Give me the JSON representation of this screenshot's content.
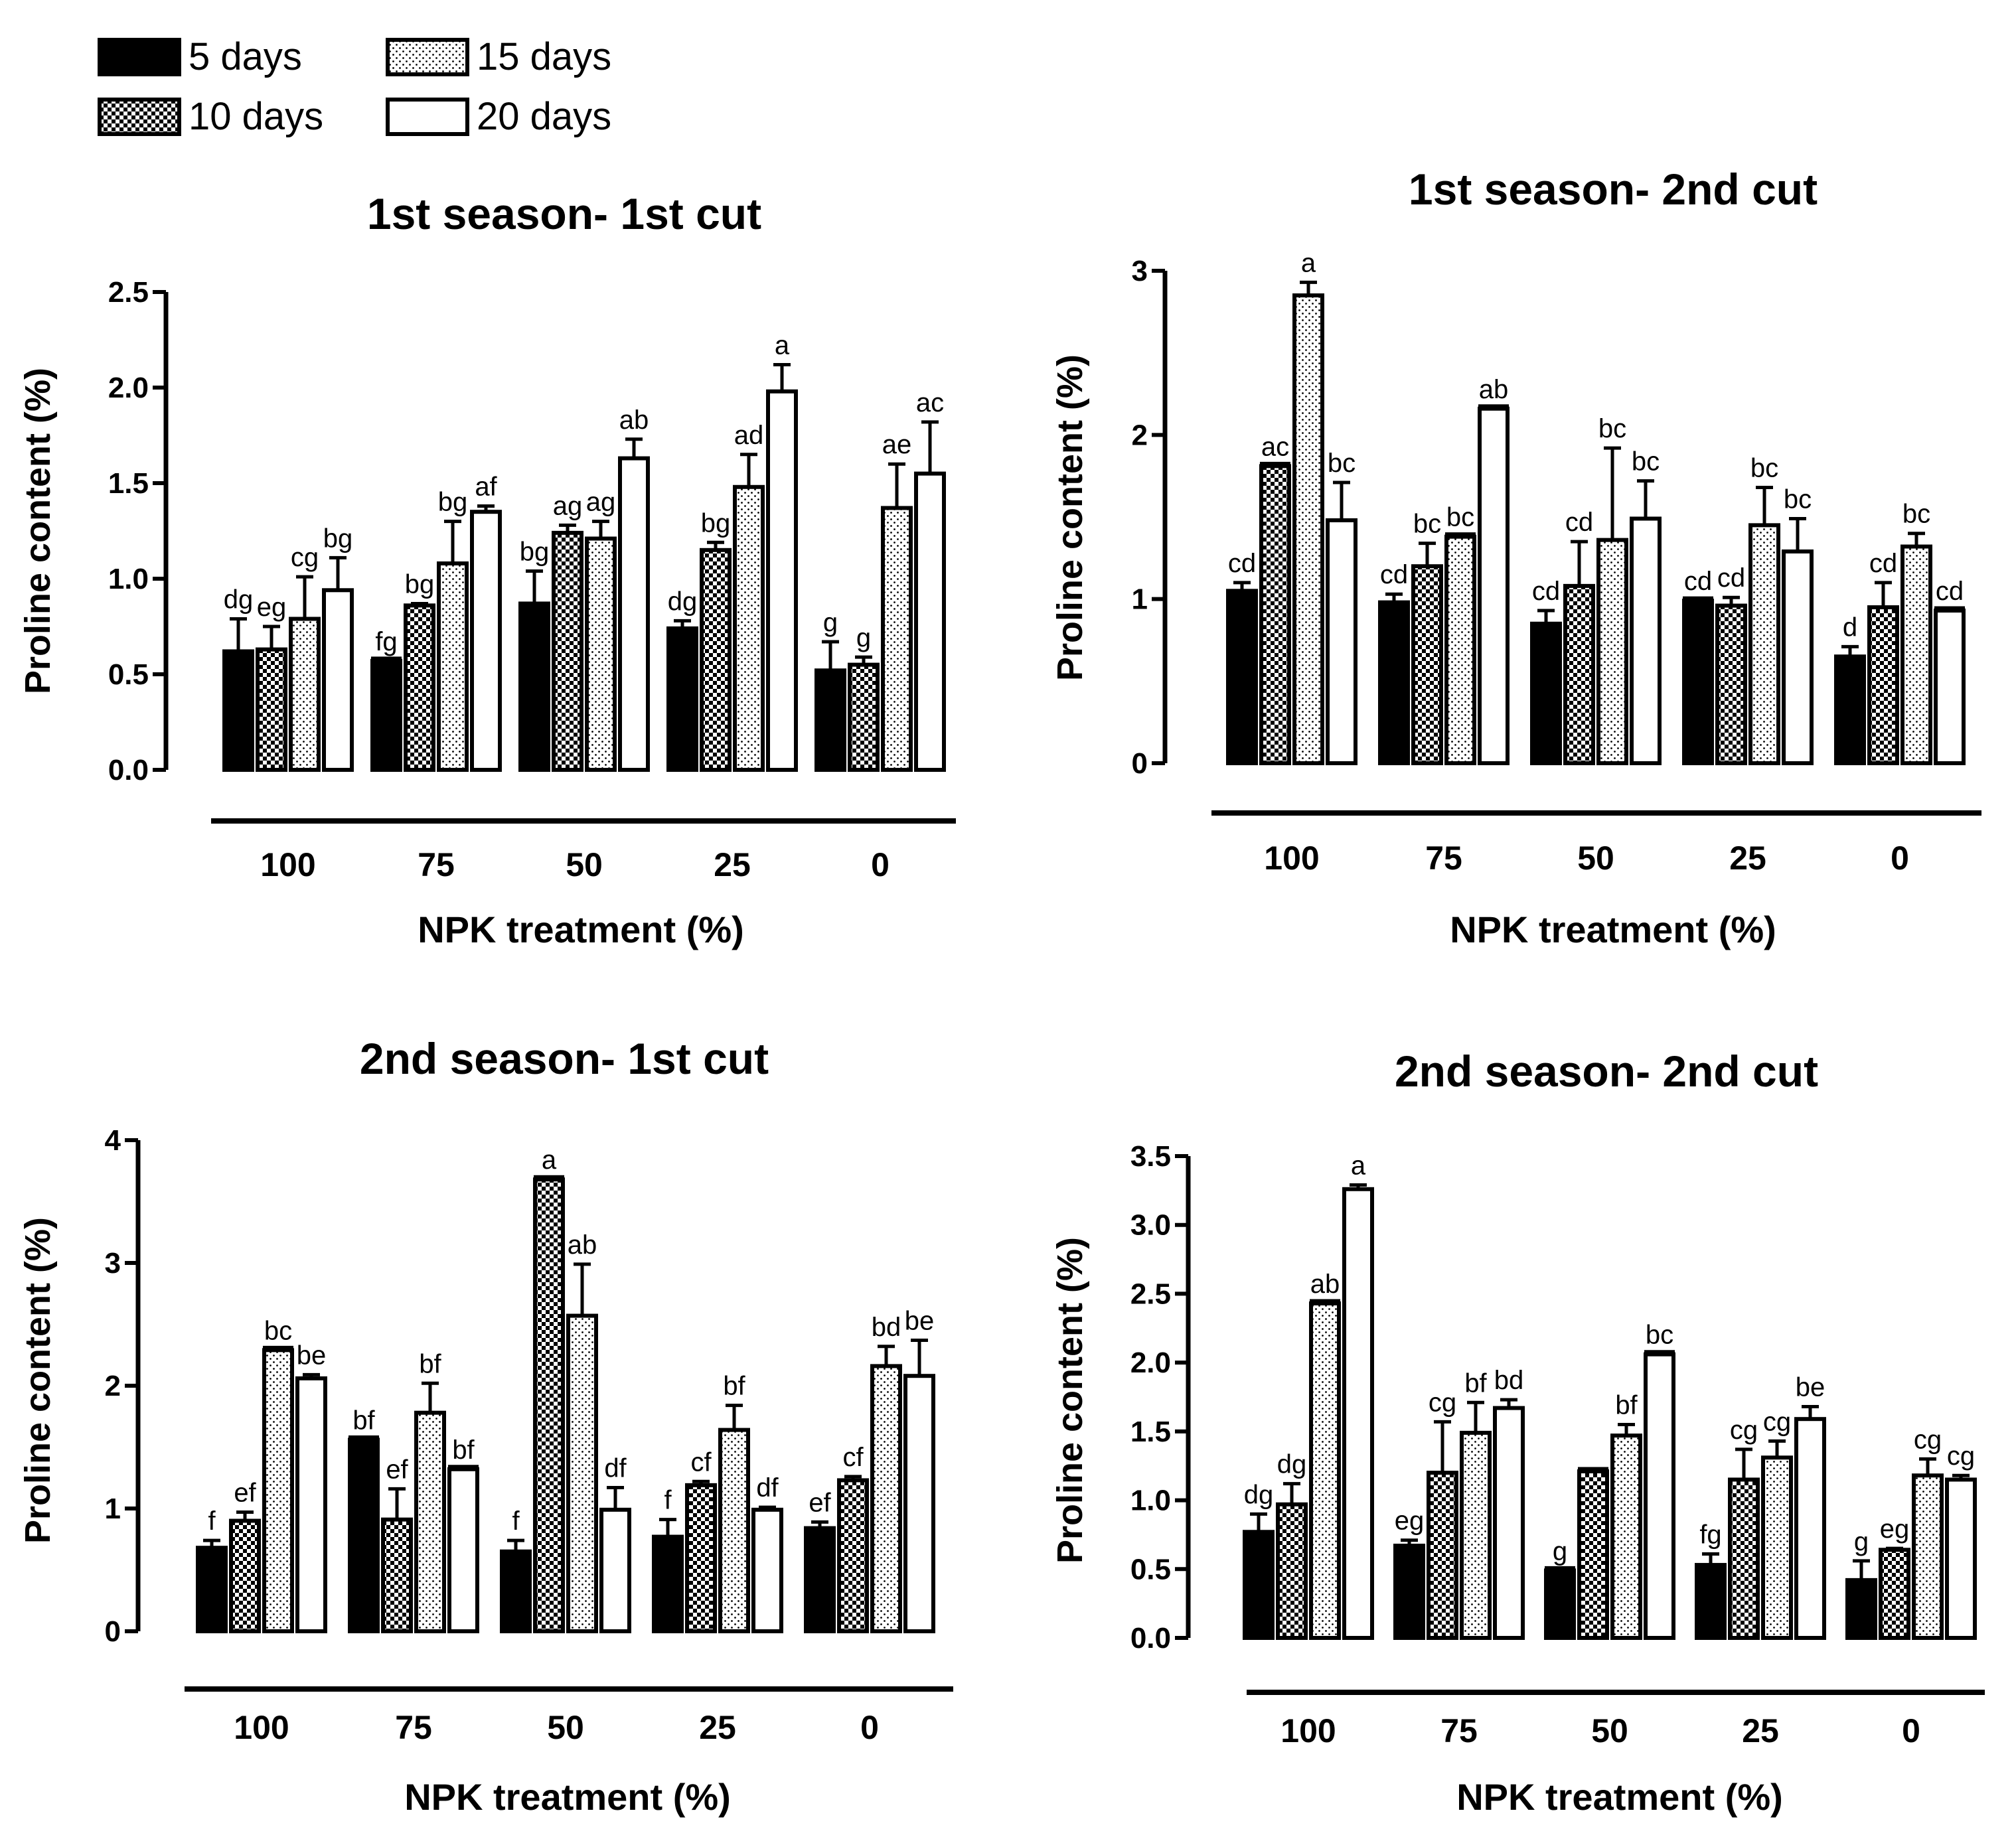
{
  "legend": [
    {
      "label": "5 days",
      "pattern": "solid"
    },
    {
      "label": "10 days",
      "pattern": "checker"
    },
    {
      "label": "15 days",
      "pattern": "dots"
    },
    {
      "label": "20 days",
      "pattern": "empty"
    }
  ],
  "colors": {
    "ink": "#000000",
    "background": "#ffffff"
  },
  "chart_data": [
    {
      "type": "bar",
      "title": "1st season- 1st cut",
      "xlabel": "NPK treatment (%)",
      "ylabel": "Proline content (%)",
      "categories": [
        "100",
        "75",
        "50",
        "25",
        "0"
      ],
      "ylim": [
        0,
        2.5
      ],
      "yticks": [
        "0.0",
        "0.5",
        "1.0",
        "1.5",
        "2.0",
        "2.5"
      ],
      "series": [
        {
          "name": "5 days",
          "values": [
            0.62,
            0.57,
            0.87,
            0.74,
            0.52
          ],
          "errors": [
            0.17,
            0.0,
            0.17,
            0.04,
            0.15
          ],
          "labels": [
            "dg",
            "fg",
            "bg",
            "dg",
            "g"
          ]
        },
        {
          "name": "10 days",
          "values": [
            0.63,
            0.86,
            1.24,
            1.15,
            0.55
          ],
          "errors": [
            0.12,
            0.01,
            0.04,
            0.04,
            0.04
          ],
          "labels": [
            "eg",
            "bg",
            "ag",
            "bg",
            "g"
          ]
        },
        {
          "name": "15 days",
          "values": [
            0.79,
            1.08,
            1.21,
            1.48,
            1.37
          ],
          "errors": [
            0.22,
            0.22,
            0.09,
            0.17,
            0.23
          ],
          "labels": [
            "cg",
            "bg",
            "ag",
            "ad",
            "ae"
          ]
        },
        {
          "name": "20 days",
          "values": [
            0.94,
            1.35,
            1.63,
            1.98,
            1.55
          ],
          "errors": [
            0.17,
            0.03,
            0.1,
            0.14,
            0.27
          ],
          "labels": [
            "bg",
            "af",
            "ab",
            "a",
            "ac"
          ]
        }
      ]
    },
    {
      "type": "bar",
      "title": "1st season- 2nd cut",
      "xlabel": "NPK treatment (%)",
      "ylabel": "Proline content (%)",
      "categories": [
        "100",
        "75",
        "50",
        "25",
        "0"
      ],
      "ylim": [
        0,
        3
      ],
      "yticks": [
        "0",
        "1",
        "2",
        "3"
      ],
      "series": [
        {
          "name": "5 days",
          "values": [
            1.05,
            0.98,
            0.85,
            0.99,
            0.65
          ],
          "errors": [
            0.05,
            0.05,
            0.08,
            0.0,
            0.06
          ],
          "labels": [
            "cd",
            "cd",
            "cd",
            "cd",
            "d"
          ]
        },
        {
          "name": "10 days",
          "values": [
            1.81,
            1.2,
            1.08,
            0.96,
            0.95
          ],
          "errors": [
            0.0,
            0.14,
            0.27,
            0.05,
            0.15
          ],
          "labels": [
            "ac",
            "bc",
            "cd",
            "cd",
            "cd"
          ]
        },
        {
          "name": "15 days",
          "values": [
            2.85,
            1.38,
            1.36,
            1.45,
            1.32
          ],
          "errors": [
            0.08,
            0.0,
            0.56,
            0.23,
            0.08
          ],
          "labels": [
            "a",
            "bc",
            "bc",
            "bc",
            "bc"
          ]
        },
        {
          "name": "20 days",
          "values": [
            1.48,
            2.16,
            1.49,
            1.29,
            0.93
          ],
          "errors": [
            0.23,
            0.0,
            0.23,
            0.2,
            0.0
          ],
          "labels": [
            "bc",
            "ab",
            "bc",
            "bc",
            "cd"
          ]
        }
      ]
    },
    {
      "type": "bar",
      "title": "2nd season- 1st cut",
      "xlabel": "NPK treatment (%)",
      "ylabel": "Proline content (%)",
      "categories": [
        "100",
        "75",
        "50",
        "25",
        "0"
      ],
      "ylim": [
        0,
        4
      ],
      "yticks": [
        "0",
        "1",
        "2",
        "3",
        "4"
      ],
      "series": [
        {
          "name": "5 days",
          "values": [
            0.68,
            1.56,
            0.65,
            0.77,
            0.84
          ],
          "errors": [
            0.06,
            0.0,
            0.09,
            0.14,
            0.05
          ],
          "labels": [
            "f",
            "bf",
            "f",
            "f",
            "ef"
          ]
        },
        {
          "name": "10 days",
          "values": [
            0.9,
            0.91,
            3.68,
            1.19,
            1.23
          ],
          "errors": [
            0.07,
            0.25,
            0.0,
            0.03,
            0.03
          ],
          "labels": [
            "ef",
            "ef",
            "a",
            "cf",
            "cf"
          ]
        },
        {
          "name": "15 days",
          "values": [
            2.29,
            1.78,
            2.57,
            1.64,
            2.16
          ],
          "errors": [
            0.0,
            0.24,
            0.42,
            0.2,
            0.16
          ],
          "labels": [
            "bc",
            "bf",
            "ab",
            "bf",
            "bd"
          ]
        },
        {
          "name": "20 days",
          "values": [
            2.06,
            1.32,
            0.99,
            0.99,
            2.08
          ],
          "errors": [
            0.03,
            0.0,
            0.18,
            0.02,
            0.29
          ],
          "labels": [
            "be",
            "bf",
            "df",
            "df",
            "be"
          ]
        }
      ]
    },
    {
      "type": "bar",
      "title": "2nd season- 2nd cut",
      "xlabel": "NPK treatment (%)",
      "ylabel": "Proline content (%)",
      "categories": [
        "100",
        "75",
        "50",
        "25",
        "0"
      ],
      "ylim": [
        0,
        3.5
      ],
      "yticks": [
        "0.0",
        "0.5",
        "1.0",
        "1.5",
        "2.0",
        "2.5",
        "3.0",
        "3.5"
      ],
      "series": [
        {
          "name": "5 days",
          "values": [
            0.77,
            0.67,
            0.49,
            0.53,
            0.42
          ],
          "errors": [
            0.13,
            0.04,
            0.0,
            0.08,
            0.14
          ],
          "labels": [
            "dg",
            "eg",
            "g",
            "fg",
            "g"
          ]
        },
        {
          "name": "10 days",
          "values": [
            0.97,
            1.2,
            1.21,
            1.15,
            0.64
          ],
          "errors": [
            0.15,
            0.37,
            0.0,
            0.22,
            0.01
          ],
          "labels": [
            "dg",
            "cg",
            "",
            "cg",
            "eg"
          ]
        },
        {
          "name": "15 days",
          "values": [
            2.43,
            1.49,
            1.47,
            1.31,
            1.18
          ],
          "errors": [
            0.0,
            0.22,
            0.08,
            0.12,
            0.12
          ],
          "labels": [
            "ab",
            "bf",
            "bf",
            "cg",
            "cg"
          ]
        },
        {
          "name": "20 days",
          "values": [
            3.26,
            1.67,
            2.06,
            1.59,
            1.15
          ],
          "errors": [
            0.03,
            0.06,
            0.0,
            0.09,
            0.03
          ],
          "labels": [
            "a",
            "bd",
            "bc",
            "be",
            "cg"
          ]
        }
      ]
    }
  ]
}
